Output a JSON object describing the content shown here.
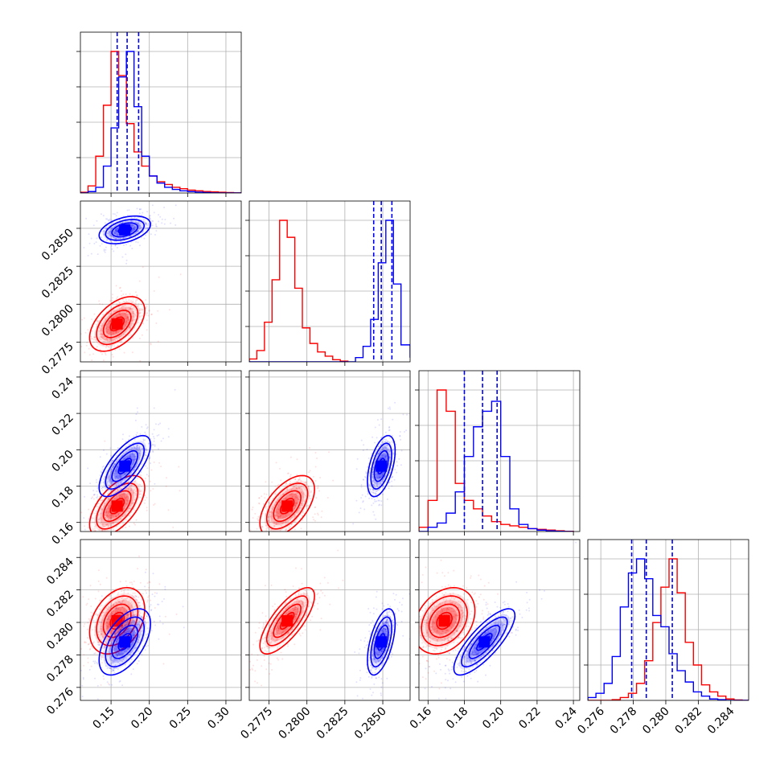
{
  "chart_data": {
    "type": "corner",
    "colors": {
      "series_a": "#ff0000",
      "series_b": "#0000ff"
    },
    "params": [
      {
        "range": [
          0.11,
          0.32
        ],
        "ticks": [
          0.15,
          0.2,
          0.25,
          0.3
        ],
        "tick_labels": [
          "0.15",
          "0.20",
          "0.25",
          "0.30"
        ]
      },
      {
        "range": [
          0.2762,
          0.2868
        ],
        "ticks": [
          0.2775,
          0.28,
          0.2825,
          0.285
        ],
        "tick_labels": [
          "0.2775",
          "0.2800",
          "0.2825",
          "0.2850"
        ]
      },
      {
        "range": [
          0.155,
          0.2435
        ],
        "ticks": [
          0.16,
          0.18,
          0.2,
          0.22,
          0.24
        ],
        "tick_labels": [
          "0.16",
          "0.18",
          "0.20",
          "0.22",
          "0.24"
        ]
      },
      {
        "range": [
          0.2752,
          0.2851
        ],
        "ticks": [
          0.276,
          0.278,
          0.28,
          0.282,
          0.284
        ],
        "tick_labels": [
          "0.276",
          "0.278",
          "0.280",
          "0.282",
          "0.284"
        ]
      }
    ],
    "series": [
      {
        "color": "#ff0000",
        "mean": [
          0.158,
          0.2787,
          0.169,
          0.2801
        ],
        "std": [
          0.015,
          0.00075,
          0.007,
          0.00085
        ],
        "corr": [
          [
            0,
            0.5,
            0.6,
            0.35
          ],
          [
            0.5,
            0,
            0.55,
            0.75
          ],
          [
            0.6,
            0.55,
            0,
            0.3
          ],
          [
            0.35,
            0.75,
            0.3,
            0
          ]
        ],
        "hist": [
          {
            "edges": [
              0.1,
              0.11,
              0.12,
              0.13,
              0.14,
              0.15,
              0.16,
              0.17,
              0.18,
              0.19,
              0.2,
              0.21,
              0.22,
              0.23,
              0.24,
              0.25,
              0.26,
              0.27,
              0.28,
              0.29,
              0.3,
              0.31,
              0.32
            ],
            "counts": [
              0.1,
              0.5,
              5,
              26,
              62,
              100,
              83,
              49,
              29,
              19,
              12,
              8,
              6,
              4,
              3,
              2,
              1.5,
              1,
              0.8,
              0.5,
              0.3,
              0.1
            ]
          },
          {
            "edges": [
              0.2762,
              0.2767,
              0.2772,
              0.2777,
              0.2782,
              0.2787,
              0.2792,
              0.2797,
              0.2802,
              0.2807,
              0.2812,
              0.2817,
              0.2822,
              0.2827
            ],
            "counts": [
              2,
              8,
              28,
              58,
              100,
              88,
              52,
              24,
              13,
              7,
              4,
              1.5,
              0.5
            ]
          },
          {
            "edges": [
              0.155,
              0.16,
              0.165,
              0.17,
              0.175,
              0.18,
              0.185,
              0.19,
              0.195,
              0.2,
              0.205,
              0.21,
              0.215,
              0.22,
              0.225,
              0.23,
              0.235,
              0.24
            ],
            "counts": [
              3,
              22,
              100,
              85,
              34,
              22,
              16,
              11,
              7,
              5,
              4,
              3,
              2,
              1.5,
              1,
              0.5,
              0.2
            ]
          },
          {
            "edges": [
              0.2752,
              0.2757,
              0.2762,
              0.2767,
              0.2772,
              0.2777,
              0.2782,
              0.2787,
              0.2792,
              0.2797,
              0.2802,
              0.2807,
              0.2812,
              0.2817,
              0.2822,
              0.2827,
              0.2832,
              0.2837,
              0.2842,
              0.2847,
              0.2851
            ],
            "counts": [
              0,
              0,
              0,
              0.5,
              2,
              5,
              12,
              28,
              55,
              80,
              100,
              76,
              41,
              25,
              11,
              6,
              3,
              1,
              0.3,
              0
            ]
          }
        ]
      },
      {
        "color": "#0000ff",
        "mean": [
          0.168,
          0.2849,
          0.191,
          0.2788
        ],
        "std": [
          0.014,
          0.00038,
          0.007,
          0.00085
        ],
        "corr": [
          [
            0,
            0.4,
            0.7,
            0.55
          ],
          [
            0.4,
            0,
            0.5,
            0.55
          ],
          [
            0.7,
            0.5,
            0,
            0.8
          ],
          [
            0.55,
            0.55,
            0.8,
            0
          ]
        ],
        "quantiles": [
          [
            0.158,
            0.171,
            0.186
          ],
          [
            0.2844,
            0.2849,
            0.2856
          ],
          [
            0.18,
            0.19,
            0.198
          ],
          [
            0.2779,
            0.2788,
            0.2804
          ]
        ],
        "hist": [
          {
            "edges": [
              0.1,
              0.11,
              0.12,
              0.13,
              0.14,
              0.15,
              0.16,
              0.17,
              0.18,
              0.19,
              0.2,
              0.21,
              0.22,
              0.23,
              0.24,
              0.25,
              0.26,
              0.27,
              0.28,
              0.29,
              0.3,
              0.31,
              0.32
            ],
            "counts": [
              0,
              0,
              1,
              4,
              19,
              46,
              82,
              100,
              61,
              26,
              12,
              7,
              4,
              2.5,
              1.5,
              1,
              0.6,
              0.3,
              0.1,
              0,
              0,
              0
            ]
          },
          {
            "edges": [
              0.2762,
              0.2767,
              0.2772,
              0.2777,
              0.2782,
              0.2787,
              0.2792,
              0.2797,
              0.2802,
              0.2807,
              0.2812,
              0.2817,
              0.2822,
              0.2827,
              0.2832,
              0.2837,
              0.2842,
              0.2847,
              0.2852,
              0.2857,
              0.2862,
              0.2868
            ],
            "counts": [
              0,
              0,
              0,
              0,
              0,
              0,
              0,
              0,
              0,
              0,
              0,
              0,
              0,
              0,
              3,
              11,
              30,
              70,
              100,
              55,
              12,
              3
            ]
          },
          {
            "edges": [
              0.155,
              0.16,
              0.165,
              0.17,
              0.175,
              0.18,
              0.185,
              0.19,
              0.195,
              0.2,
              0.205,
              0.21,
              0.215,
              0.22,
              0.225,
              0.23,
              0.235,
              0.24
            ],
            "counts": [
              0,
              3,
              6,
              13,
              28,
              53,
              74,
              85,
              92,
              53,
              16,
              5,
              2,
              1,
              0.5,
              0.2,
              0
            ]
          },
          {
            "edges": [
              0.2752,
              0.2757,
              0.2762,
              0.2767,
              0.2772,
              0.2777,
              0.2782,
              0.2787,
              0.2792,
              0.2797,
              0.2802,
              0.2807,
              0.2812,
              0.2817,
              0.2822,
              0.2827,
              0.2832,
              0.2837,
              0.2842,
              0.2847,
              0.2851
            ],
            "counts": [
              2,
              5,
              12,
              31,
              66,
              90,
              100,
              86,
              60,
              52,
              33,
              21,
              13,
              6,
              3,
              1,
              0.5,
              0,
              0,
              0
            ]
          }
        ]
      }
    ]
  }
}
